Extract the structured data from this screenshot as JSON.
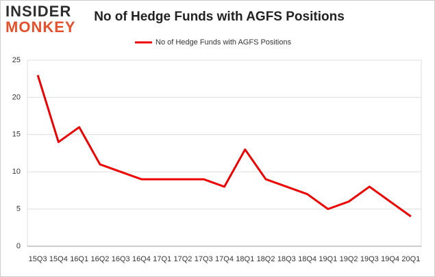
{
  "chart_data": {
    "type": "line",
    "logo": [
      "INSIDER",
      "MONKEY"
    ],
    "title": "No of Hedge Funds with AGFS Positions",
    "categories": [
      "15Q3",
      "15Q4",
      "16Q1",
      "16Q2",
      "16Q3",
      "16Q4",
      "17Q1",
      "17Q2",
      "17Q3",
      "17Q4",
      "18Q1",
      "18Q2",
      "18Q3",
      "18Q4",
      "19Q1",
      "19Q2",
      "19Q3",
      "19Q4",
      "20Q1"
    ],
    "series": [
      {
        "name": "No of Hedge Funds with AGFS Positions",
        "color": "#ee0000",
        "values": [
          23,
          14,
          16,
          11,
          10,
          9,
          9,
          9,
          9,
          8,
          13,
          9,
          8,
          7,
          5,
          6,
          8,
          6,
          4
        ]
      }
    ],
    "ylim": [
      0,
      25
    ],
    "yticks": [
      0,
      5,
      10,
      15,
      20,
      25
    ],
    "grid": true,
    "legend": "top"
  }
}
